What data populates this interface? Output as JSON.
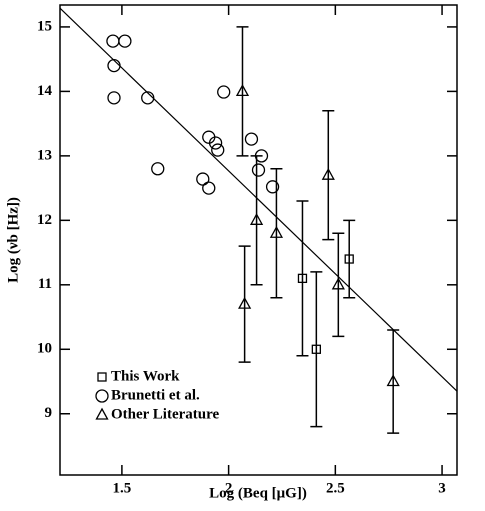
{
  "chart_data": {
    "type": "scatter",
    "xlabel": "Log (Beq [μG])",
    "ylabel": "Log (νb [Hz])",
    "xlim": [
      1.21,
      3.07
    ],
    "ylim": [
      8.05,
      15.34
    ],
    "xticks": [
      1.5,
      2,
      2.5,
      3
    ],
    "yticks": [
      9,
      10,
      11,
      12,
      13,
      14,
      15
    ],
    "series": [
      {
        "name": "This Work",
        "marker": "square",
        "color": "#000000",
        "x": [
          2.346,
          2.411,
          2.565
        ],
        "values": [
          11.1,
          10.0,
          11.4
        ],
        "errors": [
          1.2,
          1.2,
          0.6
        ]
      },
      {
        "name": "Brunetti et al.",
        "marker": "circle",
        "color": "#000000",
        "x": [
          1.458,
          1.514,
          1.463,
          1.463,
          1.621,
          1.668,
          1.977,
          1.907,
          1.939,
          1.949,
          1.879,
          1.907,
          2.107,
          2.154,
          2.14,
          2.206
        ],
        "values": [
          14.78,
          14.78,
          14.4,
          13.9,
          13.9,
          12.8,
          13.99,
          13.29,
          13.2,
          13.09,
          12.64,
          12.5,
          13.26,
          13.0,
          12.78,
          12.52
        ]
      },
      {
        "name": "Other Literature",
        "marker": "triangle",
        "color": "#000000",
        "x": [
          2.065,
          2.075,
          2.131,
          2.224,
          2.467,
          2.514,
          2.771
        ],
        "values": [
          14.0,
          10.7,
          12.0,
          11.8,
          12.7,
          11.0,
          9.5
        ],
        "errors": [
          1.0,
          0.9,
          1.0,
          1.0,
          1.0,
          0.8,
          0.8
        ]
      }
    ],
    "fit_line": {
      "x": [
        1.21,
        3.07
      ],
      "values": [
        15.29,
        9.35
      ]
    }
  }
}
